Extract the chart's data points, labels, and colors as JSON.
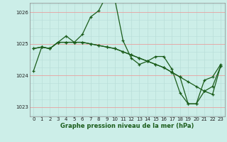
{
  "title": "Graphe pression niveau de la mer (hPa)",
  "bg_color": "#cceee8",
  "line_color": "#1a5c1a",
  "grid_color_h": "#e8a0a0",
  "grid_color_v": "#b8ddd8",
  "xlim": [
    -0.5,
    23.5
  ],
  "ylim": [
    1022.7,
    1026.3
  ],
  "yticks": [
    1023,
    1024,
    1025,
    1026
  ],
  "xticks": [
    0,
    1,
    2,
    3,
    4,
    5,
    6,
    7,
    8,
    9,
    10,
    11,
    12,
    13,
    14,
    15,
    16,
    17,
    18,
    19,
    20,
    21,
    22,
    23
  ],
  "series": [
    [
      1024.15,
      1024.9,
      1024.85,
      1025.05,
      1025.25,
      1025.05,
      1025.3,
      1025.85,
      1026.05,
      1026.55,
      1026.4,
      1025.1,
      1024.55,
      1024.35,
      1024.45,
      1024.6,
      1024.6,
      1024.2,
      1023.45,
      1023.1,
      1023.1,
      1023.85,
      1023.95,
      1024.35
    ],
    [
      1024.85,
      1024.9,
      1024.85,
      1025.05,
      1025.05,
      1025.05,
      1025.05,
      1025.0,
      1024.95,
      1024.9,
      1024.85,
      1024.75,
      1024.65,
      1024.55,
      1024.45,
      1024.35,
      1024.25,
      1024.1,
      1023.95,
      1023.8,
      1023.65,
      1023.5,
      1023.4,
      1024.3
    ],
    [
      1024.85,
      1024.9,
      1024.85,
      1025.05,
      1025.05,
      1025.05,
      1025.05,
      1025.0,
      1024.95,
      1024.9,
      1024.85,
      1024.75,
      1024.65,
      1024.55,
      1024.45,
      1024.35,
      1024.25,
      1024.1,
      1023.95,
      1023.1,
      1023.1,
      1023.5,
      1023.65,
      1024.3
    ]
  ],
  "tick_fontsize": 5.0,
  "label_fontsize": 6.0,
  "lw": 0.9,
  "markersize": 3.0,
  "markeredgewidth": 0.9
}
